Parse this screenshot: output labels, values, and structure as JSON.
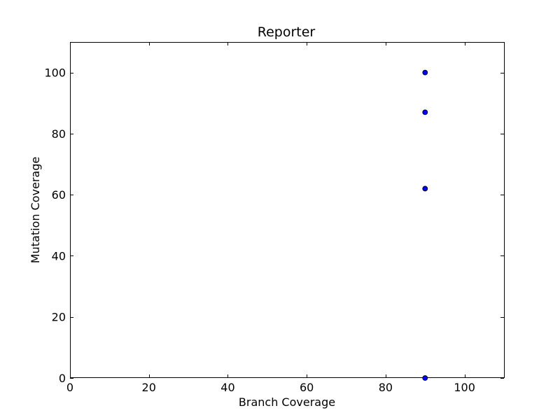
{
  "chart_data": {
    "type": "scatter",
    "title": "Reporter",
    "xlabel": "Branch Coverage",
    "ylabel": "Mutation Coverage",
    "xlim": [
      0,
      110
    ],
    "ylim": [
      0,
      110
    ],
    "xticks": [
      0,
      20,
      40,
      60,
      80,
      100
    ],
    "yticks": [
      0,
      20,
      40,
      60,
      80,
      100
    ],
    "grid": false,
    "series": [
      {
        "color": "#0000ff",
        "points": [
          {
            "x": 90,
            "y": 100
          },
          {
            "x": 90,
            "y": 87
          },
          {
            "x": 90,
            "y": 62
          },
          {
            "x": 90,
            "y": 0
          }
        ]
      }
    ]
  }
}
